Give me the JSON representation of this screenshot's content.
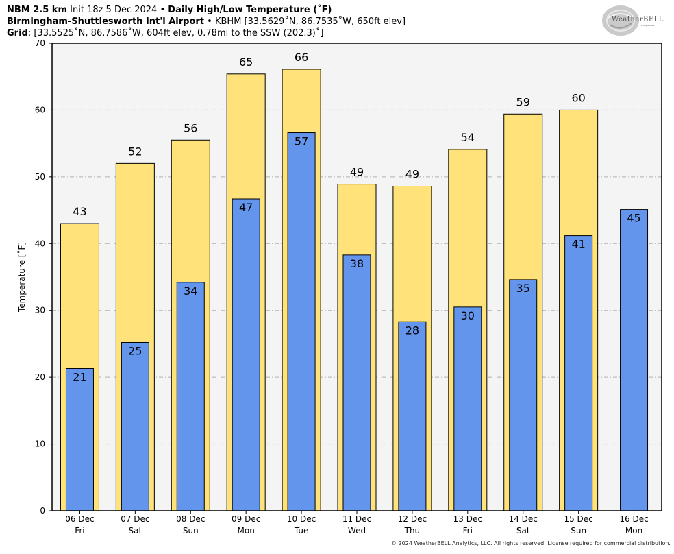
{
  "header": {
    "line1_bold_model": "NBM 2.5 km",
    "line1_init": "Init 18z 5 Dec 2024",
    "line1_sep": "•",
    "line1_bold_title": "Daily High/Low Temperature (˚F)",
    "line2_bold_station": "Birmingham-Shuttlesworth Int'l Airport",
    "line2_sep": "•",
    "line2_detail": "KBHM [33.5629˚N, 86.7535˚W, 650ft elev]",
    "line3_bold": "Grid",
    "line3_detail": ": [33.5525˚N, 86.7586˚W, 604ft elev, 0.78mi to the SSW (202.3)˚]"
  },
  "logo": {
    "text": "WeatherBELL",
    "sub": "Analytics LLC"
  },
  "footer": {
    "text": "© 2024 WeatherBELL Analytics, LLC. All rights reserved. License required for commercial distribution."
  },
  "colors": {
    "high_bar": "#FFE37A",
    "low_bar": "#6495ED",
    "plot_bg": "#F4F4F4",
    "grid": "#B0B0B0"
  },
  "chart_data": {
    "type": "bar",
    "ylabel": "Temperature [˚F]",
    "ylim": [
      0,
      70
    ],
    "yticks": [
      0,
      10,
      20,
      30,
      40,
      50,
      60,
      70
    ],
    "grid": true,
    "categories": [
      [
        "06 Dec",
        "Fri"
      ],
      [
        "07 Dec",
        "Sat"
      ],
      [
        "08 Dec",
        "Sun"
      ],
      [
        "09 Dec",
        "Mon"
      ],
      [
        "10 Dec",
        "Tue"
      ],
      [
        "11 Dec",
        "Wed"
      ],
      [
        "12 Dec",
        "Thu"
      ],
      [
        "13 Dec",
        "Fri"
      ],
      [
        "14 Dec",
        "Sat"
      ],
      [
        "15 Dec",
        "Sun"
      ],
      [
        "16 Dec",
        "Mon"
      ]
    ],
    "series": [
      {
        "values": [
          43,
          52,
          55.5,
          65.4,
          66.1,
          48.9,
          48.6,
          54.1,
          59.4,
          60,
          null
        ],
        "labels": [
          "43",
          "52",
          "56",
          "65",
          "66",
          "49",
          "49",
          "54",
          "59",
          "60",
          null
        ]
      },
      {
        "values": [
          21.3,
          25.2,
          34.2,
          46.7,
          56.6,
          38.3,
          28.3,
          30.5,
          34.6,
          41.2,
          45.1
        ],
        "labels": [
          "21",
          "25",
          "34",
          "47",
          "57",
          "38",
          "28",
          "30",
          "35",
          "41",
          "45"
        ]
      }
    ]
  }
}
